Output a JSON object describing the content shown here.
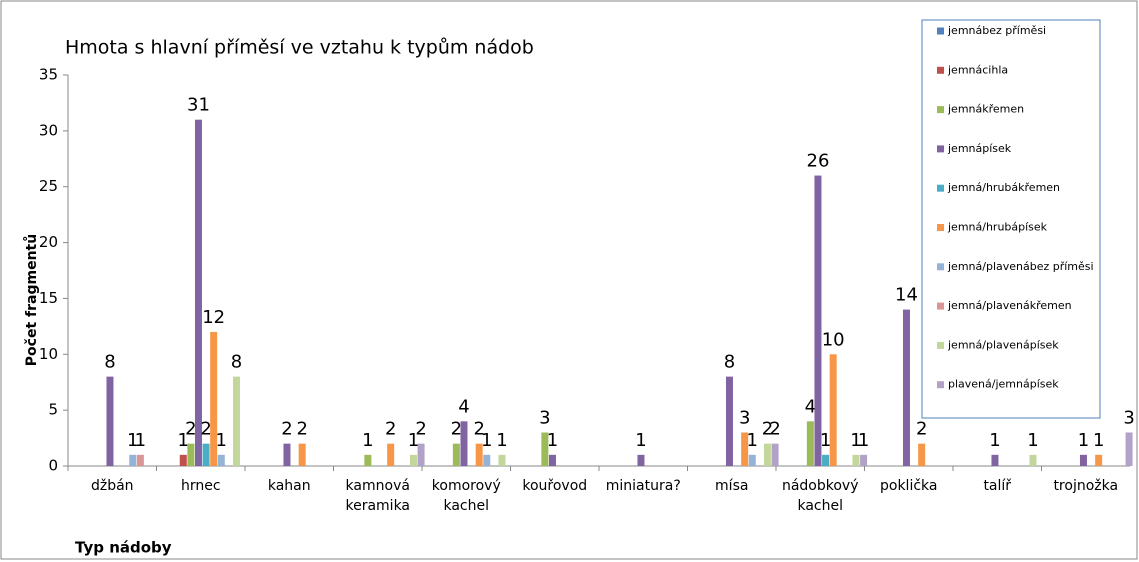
{
  "chart_data": {
    "type": "bar",
    "title": "Hmota s hlavní příměsí ve vztahu k typům nádob",
    "y_label": "Počet fragmentů",
    "x_label": "Typ nádoby",
    "categories": [
      "džbán",
      "hrnec",
      "kahan",
      "kamnová keramika",
      "komorový kachel",
      "kouřovod",
      "miniatura?",
      "mísa",
      "nádobkový kachel",
      "poklička",
      "talíř",
      "trojnožka"
    ],
    "series": [
      {
        "name": "jemnábez příměsi",
        "color": "#4f81bd",
        "values": [
          0,
          0,
          0,
          0,
          0,
          0,
          0,
          0,
          0,
          0,
          0,
          0
        ]
      },
      {
        "name": "jemnácihla",
        "color": "#c0504d",
        "values": [
          0,
          1,
          0,
          0,
          0,
          0,
          0,
          0,
          0,
          0,
          0,
          0
        ]
      },
      {
        "name": "jemnákřemen",
        "color": "#9bbb59",
        "values": [
          0,
          2,
          0,
          1,
          2,
          3,
          0,
          0,
          4,
          0,
          0,
          0
        ]
      },
      {
        "name": "jemnápísek",
        "color": "#8064a2",
        "values": [
          8,
          31,
          2,
          0,
          4,
          1,
          1,
          8,
          26,
          14,
          1,
          1
        ]
      },
      {
        "name": "jemná/hrubákřemen",
        "color": "#4bacc6",
        "values": [
          0,
          2,
          0,
          0,
          0,
          0,
          0,
          0,
          1,
          0,
          0,
          0
        ]
      },
      {
        "name": "jemná/hrubápísek",
        "color": "#f79646",
        "values": [
          0,
          12,
          2,
          2,
          2,
          0,
          0,
          3,
          10,
          2,
          0,
          1
        ]
      },
      {
        "name": "jemná/plavenábez příměsi",
        "color": "#95b3d7",
        "values": [
          1,
          1,
          0,
          0,
          1,
          0,
          0,
          1,
          0,
          0,
          0,
          0
        ]
      },
      {
        "name": "jemná/plavenákřemen",
        "color": "#d99694",
        "values": [
          1,
          0,
          0,
          0,
          0,
          0,
          0,
          0,
          0,
          0,
          0,
          0
        ]
      },
      {
        "name": "jemná/plavenápísek",
        "color": "#c3d69b",
        "values": [
          0,
          8,
          0,
          1,
          1,
          0,
          0,
          2,
          1,
          0,
          1,
          0
        ]
      },
      {
        "name": "plavená/jemnápísek",
        "color": "#b3a2c7",
        "values": [
          0,
          0,
          0,
          2,
          0,
          0,
          0,
          2,
          1,
          0,
          0,
          3
        ]
      }
    ],
    "ylim": [
      0,
      35
    ],
    "yticks": [
      0,
      5,
      10,
      15,
      20,
      25,
      30,
      35
    ],
    "grid": false
  }
}
